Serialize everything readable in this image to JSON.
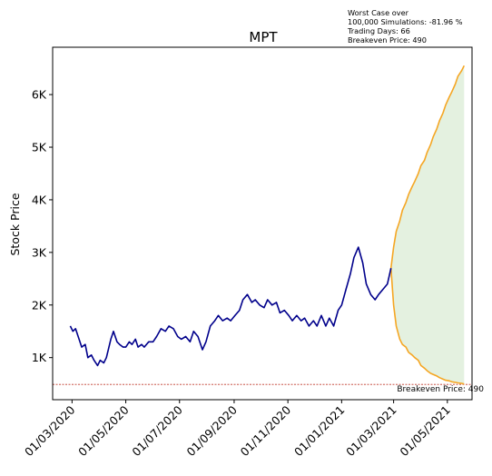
{
  "chart_data": {
    "type": "line",
    "title": "MPT",
    "ylabel": "Stock Price",
    "xlabel": "",
    "x_ticks": [
      "01/03/2020",
      "01/05/2020",
      "01/07/2020",
      "01/09/2020",
      "01/11/2020",
      "01/01/2021",
      "01/03/2021",
      "01/05/2021"
    ],
    "y_ticks": [
      "1K",
      "2K",
      "3K",
      "4K",
      "5K",
      "6K"
    ],
    "y_tick_values": [
      1000,
      2000,
      3000,
      4000,
      5000,
      6000
    ],
    "ylim": [
      200,
      6900
    ],
    "xlim": [
      "2020-02-08",
      "2021-05-29"
    ],
    "grid": false,
    "colors": {
      "history": "#00008b",
      "upper": "#f5a623",
      "lower": "#f5a623",
      "fill": "#e4f1e0",
      "breakeven": "#c0392b"
    },
    "historical": {
      "x": [
        "2020-02-28",
        "2020-03-02",
        "2020-03-05",
        "2020-03-09",
        "2020-03-12",
        "2020-03-16",
        "2020-03-19",
        "2020-03-23",
        "2020-03-26",
        "2020-03-30",
        "2020-04-02",
        "2020-04-06",
        "2020-04-09",
        "2020-04-14",
        "2020-04-17",
        "2020-04-21",
        "2020-04-24",
        "2020-04-28",
        "2020-05-01",
        "2020-05-05",
        "2020-05-08",
        "2020-05-12",
        "2020-05-15",
        "2020-05-19",
        "2020-05-22",
        "2020-05-27",
        "2020-06-01",
        "2020-06-05",
        "2020-06-10",
        "2020-06-15",
        "2020-06-19",
        "2020-06-24",
        "2020-06-29",
        "2020-07-03",
        "2020-07-08",
        "2020-07-13",
        "2020-07-17",
        "2020-07-22",
        "2020-07-27",
        "2020-07-31",
        "2020-08-05",
        "2020-08-10",
        "2020-08-14",
        "2020-08-19",
        "2020-08-24",
        "2020-08-28",
        "2020-09-02",
        "2020-09-07",
        "2020-09-11",
        "2020-09-16",
        "2020-09-21",
        "2020-09-25",
        "2020-09-30",
        "2020-10-05",
        "2020-10-09",
        "2020-10-14",
        "2020-10-19",
        "2020-10-23",
        "2020-10-28",
        "2020-11-02",
        "2020-11-06",
        "2020-11-11",
        "2020-11-16",
        "2020-11-20",
        "2020-11-25",
        "2020-11-30",
        "2020-12-04",
        "2020-12-09",
        "2020-12-14",
        "2020-12-18",
        "2020-12-23",
        "2020-12-28",
        "2021-01-01",
        "2021-01-06",
        "2021-01-11",
        "2021-01-15",
        "2021-01-20",
        "2021-01-25",
        "2021-01-29",
        "2021-02-03",
        "2021-02-08",
        "2021-02-12",
        "2021-02-17",
        "2021-02-22",
        "2021-02-26"
      ],
      "y": [
        1600,
        1500,
        1550,
        1350,
        1200,
        1250,
        1000,
        1050,
        950,
        850,
        950,
        900,
        1000,
        1350,
        1500,
        1300,
        1250,
        1200,
        1200,
        1300,
        1250,
        1350,
        1200,
        1250,
        1200,
        1300,
        1300,
        1400,
        1550,
        1500,
        1600,
        1550,
        1400,
        1350,
        1400,
        1300,
        1500,
        1400,
        1150,
        1300,
        1600,
        1700,
        1800,
        1700,
        1750,
        1700,
        1800,
        1900,
        2100,
        2200,
        2050,
        2100,
        2000,
        1950,
        2100,
        2000,
        2050,
        1850,
        1900,
        1800,
        1700,
        1800,
        1700,
        1750,
        1600,
        1700,
        1600,
        1800,
        1600,
        1750,
        1600,
        1900,
        2000,
        2300,
        2600,
        2900,
        3100,
        2800,
        2400,
        2200,
        2100,
        2200,
        2300,
        2400,
        2700
      ]
    },
    "upper_path": {
      "x": [
        "2021-02-26",
        "2021-03-01",
        "2021-03-04",
        "2021-03-08",
        "2021-03-11",
        "2021-03-15",
        "2021-03-18",
        "2021-03-22",
        "2021-03-25",
        "2021-03-29",
        "2021-04-01",
        "2021-04-05",
        "2021-04-08",
        "2021-04-12",
        "2021-04-15",
        "2021-04-19",
        "2021-04-22",
        "2021-04-26",
        "2021-04-29",
        "2021-05-03",
        "2021-05-06",
        "2021-05-10",
        "2021-05-13",
        "2021-05-17",
        "2021-05-20"
      ],
      "y": [
        2700,
        3100,
        3400,
        3600,
        3800,
        3950,
        4100,
        4250,
        4350,
        4500,
        4650,
        4750,
        4900,
        5050,
        5200,
        5350,
        5500,
        5650,
        5800,
        5950,
        6050,
        6200,
        6350,
        6450,
        6550
      ]
    },
    "lower_path": {
      "x": [
        "2021-02-26",
        "2021-03-01",
        "2021-03-04",
        "2021-03-08",
        "2021-03-11",
        "2021-03-15",
        "2021-03-18",
        "2021-03-22",
        "2021-03-25",
        "2021-03-29",
        "2021-04-01",
        "2021-04-05",
        "2021-04-08",
        "2021-04-12",
        "2021-04-15",
        "2021-04-19",
        "2021-04-22",
        "2021-04-26",
        "2021-04-29",
        "2021-05-03",
        "2021-05-06",
        "2021-05-10",
        "2021-05-13",
        "2021-05-17",
        "2021-05-20"
      ],
      "y": [
        2700,
        2000,
        1600,
        1350,
        1250,
        1200,
        1100,
        1050,
        1000,
        950,
        850,
        800,
        750,
        700,
        680,
        650,
        620,
        590,
        570,
        560,
        540,
        530,
        520,
        510,
        500
      ]
    },
    "breakeven": {
      "value": 490,
      "label": "Breakeven Price: 490"
    },
    "annotation_lines": [
      "Worst Case over",
      "100,000 Simulations: -81.96 %",
      "Trading Days: 66",
      "Breakeven Price: 490"
    ]
  }
}
